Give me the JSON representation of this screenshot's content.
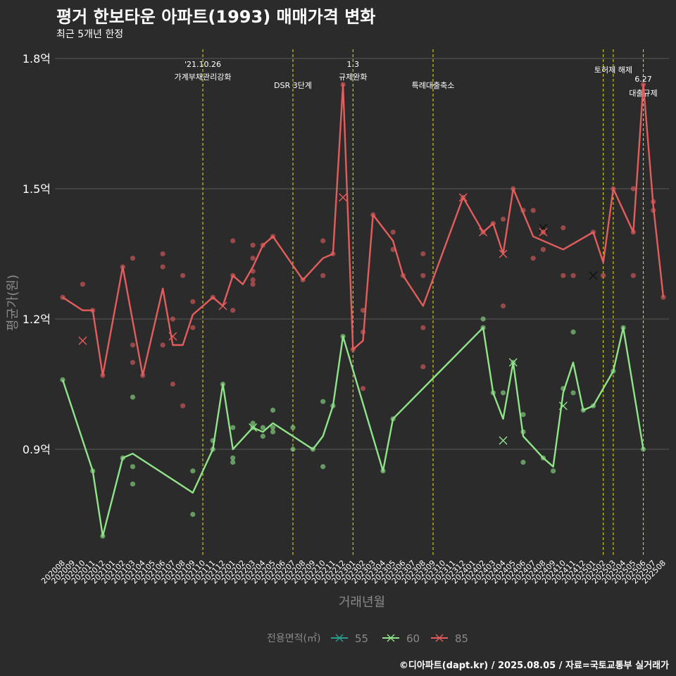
{
  "header": {
    "title": "평거 한보타운 아파트(1993) 매매가격 변화",
    "subtitle": "최근 5개년 한정"
  },
  "caption": "©디아파트(dapt.kr) / 2025.08.05 / 자료=국토교통부 실거래가",
  "colors": {
    "background": "#2b2b2b",
    "grid": "#5a5a5a",
    "s55": "#2a9d8f",
    "s60": "#8fe388",
    "s85": "#e35d5d",
    "event": "#e6e600"
  },
  "chart_data": {
    "type": "line",
    "title": "평거 한보타운 아파트(1993) 매매가격 변화",
    "subtitle": "최근 5개년 한정",
    "xlabel": "거래년월",
    "ylabel": "평균가(원)",
    "ylim": [
      0.64,
      1.84
    ],
    "yticks": [
      0.9,
      1.2,
      1.5,
      1.8
    ],
    "ytick_labels": [
      "0.9억",
      "1.2억",
      "1.5억",
      "1.8억"
    ],
    "grid": true,
    "legend_title": "전용면적(㎡)",
    "legend_position": "bottom",
    "categories": [
      "202008",
      "202009",
      "202010",
      "202011",
      "202012",
      "202101",
      "202102",
      "202103",
      "202104",
      "202105",
      "202106",
      "202107",
      "202108",
      "202109",
      "202110",
      "202111",
      "202112",
      "202201",
      "202202",
      "202203",
      "202204",
      "202205",
      "202206",
      "202207",
      "202208",
      "202209",
      "202210",
      "202211",
      "202212",
      "202301",
      "202302",
      "202303",
      "202304",
      "202305",
      "202306",
      "202307",
      "202308",
      "202309",
      "202310",
      "202311",
      "202312",
      "202401",
      "202402",
      "202403",
      "202404",
      "202405",
      "202406",
      "202407",
      "202408",
      "202409",
      "202410",
      "202411",
      "202412",
      "202501",
      "202502",
      "202503",
      "202504",
      "202505",
      "202506",
      "202507",
      "202508"
    ],
    "series": [
      {
        "name": "55",
        "color": "#2a9d8f",
        "line": [],
        "points": [],
        "cancelled": []
      },
      {
        "name": "60",
        "color": "#8fe388",
        "line": [
          [
            "202008",
            1.06
          ],
          [
            "202011",
            0.85
          ],
          [
            "202012",
            0.7
          ],
          [
            "202102",
            0.88
          ],
          [
            "202103",
            0.89
          ],
          [
            "202109",
            0.8
          ],
          [
            "202111",
            0.9
          ],
          [
            "202112",
            1.05
          ],
          [
            "202201",
            0.9
          ],
          [
            "202203",
            0.95
          ],
          [
            "202204",
            0.94
          ],
          [
            "202205",
            0.96
          ],
          [
            "202207",
            0.93
          ],
          [
            "202209",
            0.9
          ],
          [
            "202210",
            0.93
          ],
          [
            "202211",
            1.0
          ],
          [
            "202212",
            1.16
          ],
          [
            "202304",
            0.85
          ],
          [
            "202305",
            0.97
          ],
          [
            "202402",
            1.18
          ],
          [
            "202403",
            1.03
          ],
          [
            "202404",
            0.97
          ],
          [
            "202405",
            1.1
          ],
          [
            "202406",
            0.93
          ],
          [
            "202408",
            0.88
          ],
          [
            "202409",
            0.86
          ],
          [
            "202410",
            1.03
          ],
          [
            "202411",
            1.1
          ],
          [
            "202412",
            0.99
          ],
          [
            "202501",
            1.0
          ],
          [
            "202503",
            1.08
          ],
          [
            "202504",
            1.18
          ],
          [
            "202506",
            0.9
          ]
        ],
        "points": [
          [
            "202008",
            1.06
          ],
          [
            "202011",
            0.85
          ],
          [
            "202012",
            0.7
          ],
          [
            "202102",
            0.88
          ],
          [
            "202103",
            1.02
          ],
          [
            "202103",
            0.86
          ],
          [
            "202103",
            0.82
          ],
          [
            "202109",
            0.85
          ],
          [
            "202109",
            0.75
          ],
          [
            "202111",
            0.92
          ],
          [
            "202111",
            0.9
          ],
          [
            "202112",
            1.05
          ],
          [
            "202201",
            0.95
          ],
          [
            "202201",
            0.88
          ],
          [
            "202201",
            0.87
          ],
          [
            "202203",
            0.96
          ],
          [
            "202203",
            0.95
          ],
          [
            "202204",
            0.95
          ],
          [
            "202204",
            0.93
          ],
          [
            "202205",
            0.99
          ],
          [
            "202205",
            0.95
          ],
          [
            "202205",
            0.94
          ],
          [
            "202207",
            0.95
          ],
          [
            "202207",
            0.9
          ],
          [
            "202209",
            0.9
          ],
          [
            "202210",
            1.01
          ],
          [
            "202210",
            0.86
          ],
          [
            "202211",
            1.0
          ],
          [
            "202212",
            1.16
          ],
          [
            "202304",
            0.85
          ],
          [
            "202305",
            0.97
          ],
          [
            "202402",
            1.2
          ],
          [
            "202402",
            1.18
          ],
          [
            "202403",
            1.03
          ],
          [
            "202404",
            1.03
          ],
          [
            "202405",
            1.1
          ],
          [
            "202406",
            0.98
          ],
          [
            "202406",
            0.94
          ],
          [
            "202406",
            0.87
          ],
          [
            "202408",
            0.88
          ],
          [
            "202409",
            0.85
          ],
          [
            "202410",
            1.04
          ],
          [
            "202411",
            1.17
          ],
          [
            "202411",
            1.03
          ],
          [
            "202412",
            0.99
          ],
          [
            "202501",
            1.0
          ],
          [
            "202503",
            1.08
          ],
          [
            "202504",
            1.18
          ],
          [
            "202506",
            0.9
          ]
        ],
        "cancelled": [
          [
            "202203",
            0.95
          ],
          [
            "202404",
            0.92
          ],
          [
            "202405",
            1.1
          ],
          [
            "202410",
            1.0
          ]
        ]
      },
      {
        "name": "85",
        "color": "#e35d5d",
        "line": [
          [
            "202008",
            1.25
          ],
          [
            "202010",
            1.22
          ],
          [
            "202011",
            1.22
          ],
          [
            "202012",
            1.07
          ],
          [
            "202102",
            1.32
          ],
          [
            "202104",
            1.07
          ],
          [
            "202106",
            1.27
          ],
          [
            "202107",
            1.14
          ],
          [
            "202108",
            1.14
          ],
          [
            "202109",
            1.21
          ],
          [
            "202111",
            1.25
          ],
          [
            "202112",
            1.23
          ],
          [
            "202201",
            1.3
          ],
          [
            "202202",
            1.28
          ],
          [
            "202203",
            1.32
          ],
          [
            "202204",
            1.37
          ],
          [
            "202205",
            1.39
          ],
          [
            "202208",
            1.29
          ],
          [
            "202210",
            1.34
          ],
          [
            "202211",
            1.35
          ],
          [
            "202212",
            1.74
          ],
          [
            "202301",
            1.13
          ],
          [
            "202302",
            1.15
          ],
          [
            "202303",
            1.44
          ],
          [
            "202305",
            1.38
          ],
          [
            "202306",
            1.3
          ],
          [
            "202308",
            1.23
          ],
          [
            "202312",
            1.48
          ],
          [
            "202402",
            1.4
          ],
          [
            "202403",
            1.42
          ],
          [
            "202404",
            1.35
          ],
          [
            "202405",
            1.5
          ],
          [
            "202407",
            1.39
          ],
          [
            "202410",
            1.36
          ],
          [
            "202501",
            1.4
          ],
          [
            "202502",
            1.33
          ],
          [
            "202503",
            1.5
          ],
          [
            "202505",
            1.4
          ],
          [
            "202506",
            1.74
          ],
          [
            "202507",
            1.46
          ],
          [
            "202508",
            1.25
          ]
        ],
        "points": [
          [
            "202008",
            1.25
          ],
          [
            "202010",
            1.28
          ],
          [
            "202011",
            1.22
          ],
          [
            "202012",
            1.07
          ],
          [
            "202102",
            1.32
          ],
          [
            "202103",
            1.34
          ],
          [
            "202103",
            1.14
          ],
          [
            "202103",
            1.1
          ],
          [
            "202104",
            1.07
          ],
          [
            "202106",
            1.35
          ],
          [
            "202106",
            1.32
          ],
          [
            "202106",
            1.14
          ],
          [
            "202107",
            1.2
          ],
          [
            "202107",
            1.05
          ],
          [
            "202108",
            1.3
          ],
          [
            "202108",
            1.0
          ],
          [
            "202109",
            1.24
          ],
          [
            "202109",
            1.18
          ],
          [
            "202111",
            1.25
          ],
          [
            "202201",
            1.38
          ],
          [
            "202201",
            1.3
          ],
          [
            "202201",
            1.22
          ],
          [
            "202203",
            1.37
          ],
          [
            "202203",
            1.34
          ],
          [
            "202203",
            1.31
          ],
          [
            "202203",
            1.29
          ],
          [
            "202203",
            1.28
          ],
          [
            "202204",
            1.37
          ],
          [
            "202205",
            1.39
          ],
          [
            "202208",
            1.29
          ],
          [
            "202210",
            1.38
          ],
          [
            "202210",
            1.3
          ],
          [
            "202211",
            1.35
          ],
          [
            "202212",
            1.74
          ],
          [
            "202301",
            1.13
          ],
          [
            "202302",
            1.22
          ],
          [
            "202302",
            1.17
          ],
          [
            "202302",
            1.04
          ],
          [
            "202303",
            1.44
          ],
          [
            "202305",
            1.4
          ],
          [
            "202305",
            1.36
          ],
          [
            "202306",
            1.3
          ],
          [
            "202308",
            1.35
          ],
          [
            "202308",
            1.3
          ],
          [
            "202308",
            1.18
          ],
          [
            "202308",
            1.09
          ],
          [
            "202312",
            1.48
          ],
          [
            "202402",
            1.4
          ],
          [
            "202403",
            1.42
          ],
          [
            "202404",
            1.43
          ],
          [
            "202404",
            1.23
          ],
          [
            "202405",
            1.5
          ],
          [
            "202406",
            1.45
          ],
          [
            "202407",
            1.45
          ],
          [
            "202407",
            1.34
          ],
          [
            "202408",
            1.4
          ],
          [
            "202408",
            1.36
          ],
          [
            "202410",
            1.41
          ],
          [
            "202410",
            1.3
          ],
          [
            "202411",
            1.3
          ],
          [
            "202501",
            1.4
          ],
          [
            "202502",
            1.3
          ],
          [
            "202503",
            1.5
          ],
          [
            "202505",
            1.5
          ],
          [
            "202505",
            1.4
          ],
          [
            "202505",
            1.3
          ],
          [
            "202506",
            1.74
          ],
          [
            "202507",
            1.47
          ],
          [
            "202507",
            1.45
          ],
          [
            "202508",
            1.25
          ]
        ],
        "cancelled": [
          [
            "202010",
            1.15
          ],
          [
            "202107",
            1.16
          ],
          [
            "202112",
            1.23
          ],
          [
            "202212",
            1.48
          ],
          [
            "202312",
            1.48
          ],
          [
            "202402",
            1.4
          ],
          [
            "202404",
            1.35
          ],
          [
            "202408",
            1.41
          ],
          [
            "202408",
            1.4
          ],
          [
            "202501",
            1.3
          ]
        ],
        "cancelled_dark": [
          [
            "202408",
            1.41
          ],
          [
            "202501",
            1.3
          ]
        ]
      }
    ],
    "events": [
      {
        "x": "202110",
        "line1": "'21.10.26",
        "line2": "가계부채관리강화",
        "level": 1
      },
      {
        "x": "202207",
        "line1": "DSR 3단계",
        "line2": "",
        "level": 3
      },
      {
        "x": "202301",
        "line1": "1.3",
        "line2": "규제완화",
        "level": 1
      },
      {
        "x": "202309",
        "line1": "특례대출축소",
        "line2": "",
        "level": 3
      },
      {
        "x": "202502",
        "line1": "",
        "line2": "",
        "level": 0
      },
      {
        "x": "202503",
        "line1": "토허제 해제",
        "line2": "",
        "level": 2
      },
      {
        "x": "202506",
        "line1": "6.27",
        "line2": "대출규제",
        "level": 4
      }
    ]
  }
}
